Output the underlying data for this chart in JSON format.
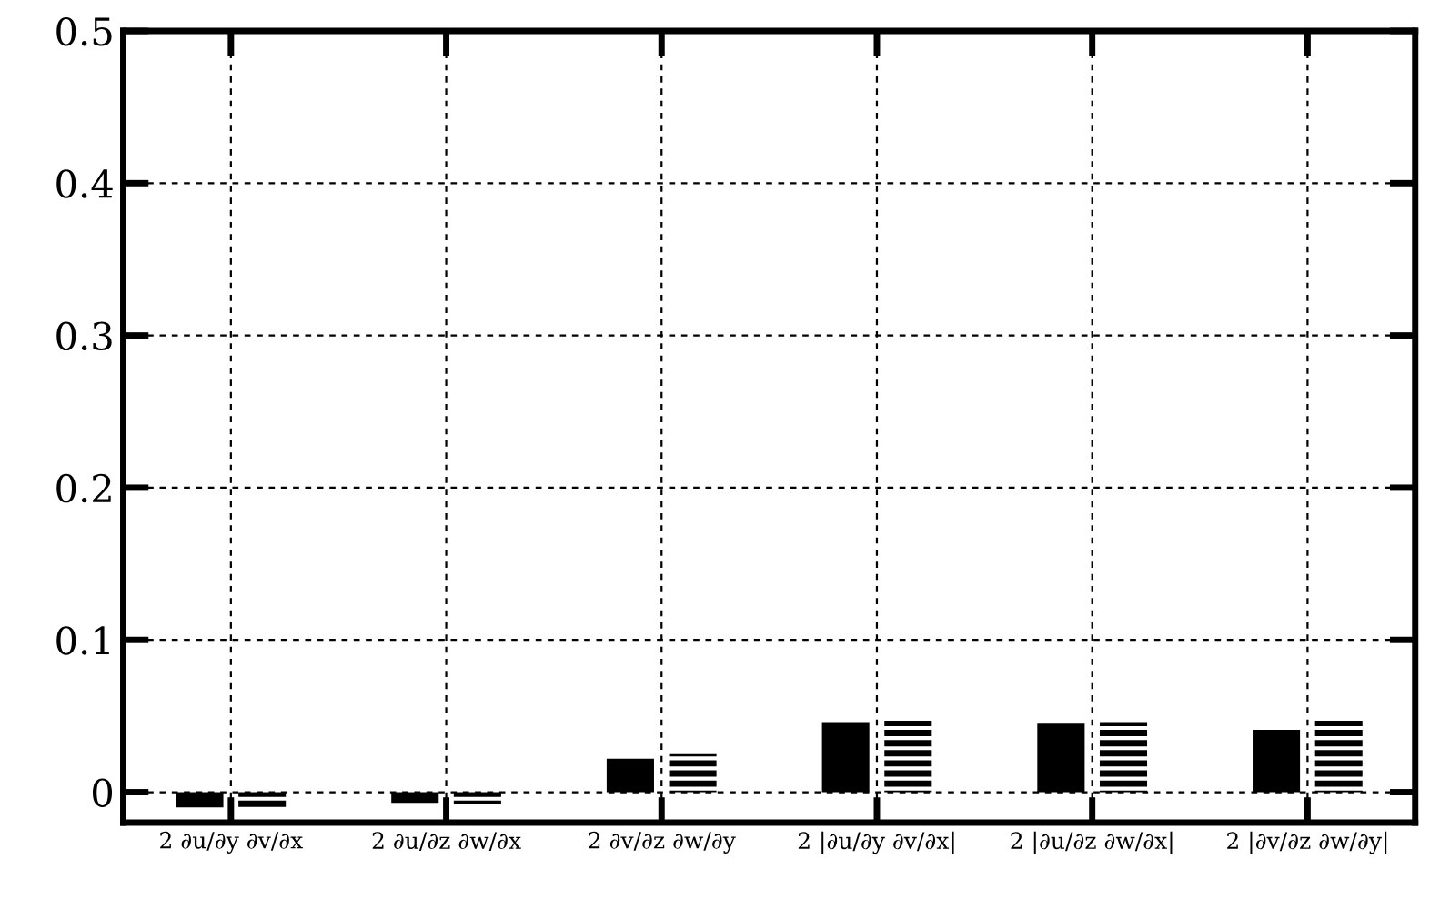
{
  "chart_data": {
    "type": "bar",
    "categories": [
      "2 ∂u/∂y ∂v/∂x",
      "2 ∂u/∂z ∂w/∂x",
      "2 ∂v/∂z ∂w/∂y",
      "2 |∂u/∂y ∂v/∂x|",
      "2 |∂u/∂z ∂w/∂x|",
      "2 |∂v/∂z ∂w/∂y|"
    ],
    "series": [
      {
        "color": "#000000",
        "values": [
          -0.01,
          -0.007,
          0.022,
          0.046,
          0.045,
          0.041
        ]
      },
      {
        "color": "#000000",
        "values": [
          -0.01,
          -0.008,
          0.025,
          0.047,
          0.046,
          0.047
        ]
      }
    ],
    "ylim": [
      -0.02,
      0.5
    ],
    "yticks": [
      0,
      0.1,
      0.2,
      0.3,
      0.4,
      0.5
    ],
    "grid": true
  }
}
